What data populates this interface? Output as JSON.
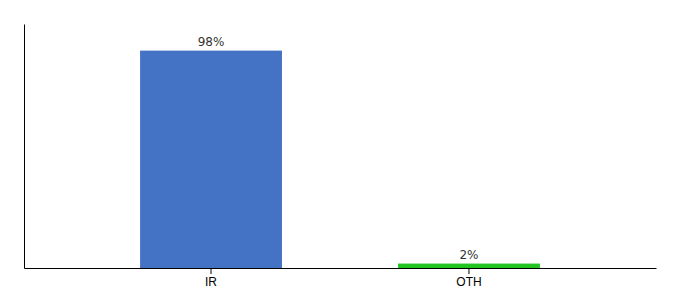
{
  "chart_data": {
    "type": "bar",
    "categories": [
      "IR",
      "OTH"
    ],
    "values": [
      98,
      2
    ],
    "value_labels": [
      "98%",
      "2%"
    ],
    "colors": [
      "#4472C4",
      "#22C422"
    ],
    "ylim": [
      0,
      110
    ],
    "data_labels": true,
    "tick_labels": "x"
  }
}
